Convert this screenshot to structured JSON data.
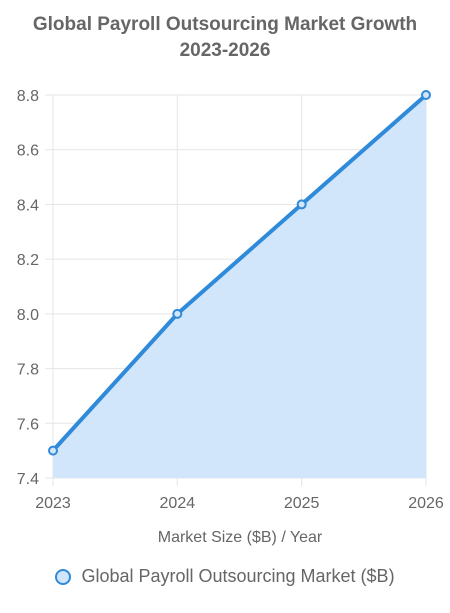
{
  "chart_data": {
    "type": "area",
    "title_lines": [
      "Global Payroll Outsourcing Market Growth",
      "2023-2026"
    ],
    "x": [
      "2023",
      "2024",
      "2025",
      "2026"
    ],
    "series": [
      {
        "name": "Global Payroll Outsourcing Market ($B)",
        "values": [
          7.5,
          8.0,
          8.4,
          8.8
        ]
      }
    ],
    "xlabel": "Market Size ($B) / Year",
    "ylabel": "",
    "ylim": [
      7.4,
      8.8
    ],
    "yticks": [
      "7.4",
      "7.6",
      "7.8",
      "8.0",
      "8.2",
      "8.4",
      "8.6",
      "8.8"
    ],
    "grid": true,
    "legend_position": "bottom",
    "colors": {
      "line": "#2f8ad9",
      "fill": "#d2e6fb",
      "grid": "#e5e5e5",
      "text": "#666666"
    }
  }
}
